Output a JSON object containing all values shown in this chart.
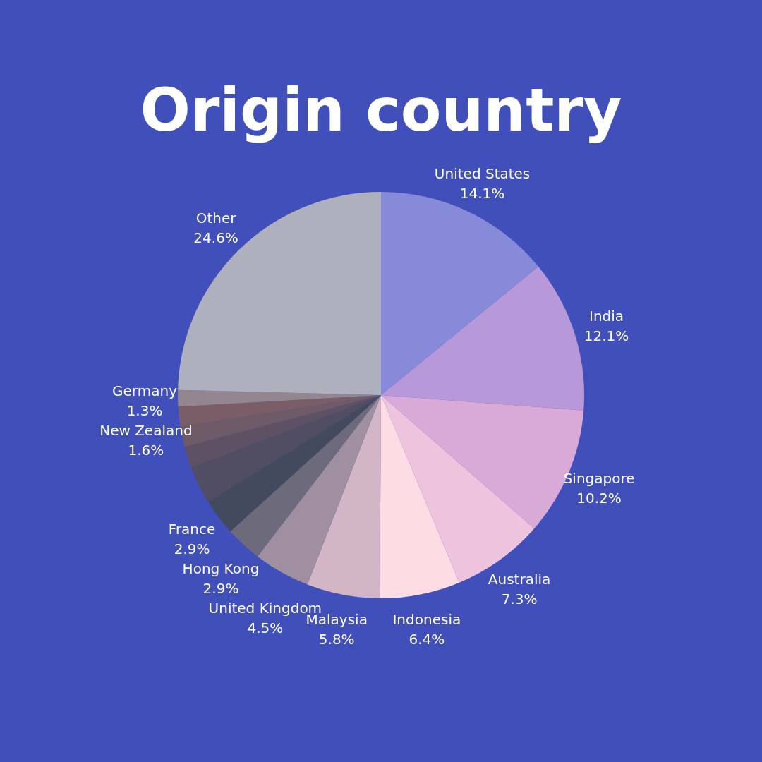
{
  "chart_data": {
    "type": "pie",
    "title": "Origin country",
    "categories": [
      "United States",
      "India",
      "Singapore",
      "Australia",
      "Indonesia",
      "Malaysia",
      "United Kingdom",
      "Hong Kong",
      "France",
      null,
      null,
      null,
      "New Zealand",
      "Germany",
      "Other"
    ],
    "values": [
      14.1,
      12.1,
      10.2,
      7.3,
      6.4,
      5.8,
      4.5,
      2.9,
      2.9,
      3.0,
      1.7,
      1.6,
      1.6,
      1.3,
      24.6
    ],
    "colors": [
      "#8789d9",
      "#b798d8",
      "#d9aad8",
      "#eec3de",
      "#fddde3",
      "#d2b6c6",
      "#a08fa0",
      "#6d6a7b",
      "#434a5e",
      "#514d62",
      "#5e5163",
      "#6f5a68",
      "#7a5d66",
      "#93868f",
      "#aeb0be"
    ],
    "value_labels": [
      "14.1%",
      "12.1%",
      "10.2%",
      "7.3%",
      "6.4%",
      "5.8%",
      "4.5%",
      "2.9%",
      "2.9%",
      null,
      null,
      null,
      "1.6%",
      "1.3%",
      "24.6%"
    ]
  }
}
